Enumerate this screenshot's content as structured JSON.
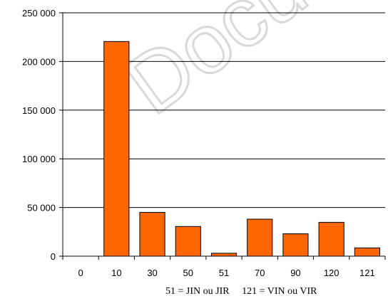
{
  "chart_data": {
    "type": "bar",
    "categories": [
      "0",
      "10",
      "30",
      "50",
      "51",
      "70",
      "90",
      "120",
      "121"
    ],
    "values": [
      0,
      220500,
      45000,
      30500,
      3000,
      38000,
      23000,
      34800,
      8500
    ],
    "y_ticks": [
      "0",
      "50 000",
      "100 000",
      "150 000",
      "200 000",
      "250 000"
    ],
    "ylim": [
      0,
      250000
    ],
    "grid": true,
    "bar_color": "#FF6600",
    "note": "51 = JIN ou JIR     121 = VIN ou VIR",
    "watermark": "Docu"
  }
}
